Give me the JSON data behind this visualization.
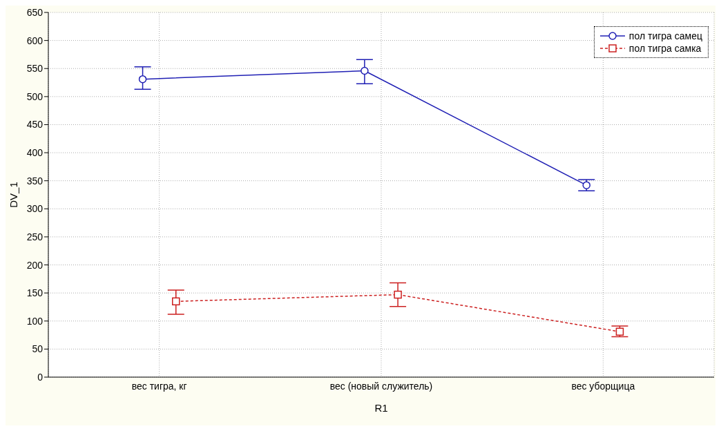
{
  "chart_data": {
    "type": "line",
    "xlabel": "R1",
    "ylabel": "DV_1",
    "categories": [
      "вес тигра, кг",
      "вес (новый служитель)",
      "вес уборщица"
    ],
    "series": [
      {
        "name": "пол тигра самец",
        "color": "#1f1fb4",
        "marker": "circle",
        "line_style": "solid",
        "values": [
          531,
          546,
          342
        ],
        "errors": [
          [
            513,
            553
          ],
          [
            523,
            566
          ],
          [
            332,
            352
          ]
        ]
      },
      {
        "name": "пол тигра самка",
        "color": "#cc1f1f",
        "marker": "square",
        "line_style": "dashed",
        "values": [
          135,
          147,
          81
        ],
        "errors": [
          [
            112,
            155
          ],
          [
            126,
            168
          ],
          [
            72,
            91
          ]
        ]
      }
    ],
    "ylim": [
      0,
      650
    ],
    "yticks": [
      0,
      50,
      100,
      150,
      200,
      250,
      300,
      350,
      400,
      450,
      500,
      550,
      600,
      650
    ],
    "grid": true,
    "legend": "top right"
  }
}
